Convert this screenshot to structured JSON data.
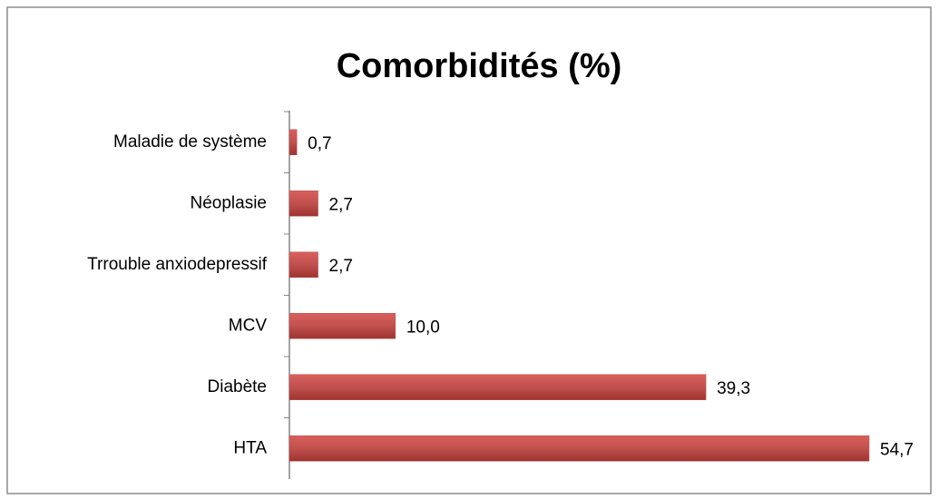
{
  "chart_data": {
    "type": "barh",
    "title": "Comorbidités (%)",
    "categories": [
      "Maladie de système",
      "Néoplasie",
      "Trrouble anxiodepressif",
      "MCV",
      "Diabète",
      "HTA"
    ],
    "values": [
      0.7,
      2.7,
      2.7,
      10.0,
      39.3,
      54.7
    ],
    "value_labels": [
      "0,7",
      "2,7",
      "2,7",
      "10,0",
      "39,3",
      "54,7"
    ],
    "color": "#c0504d"
  }
}
